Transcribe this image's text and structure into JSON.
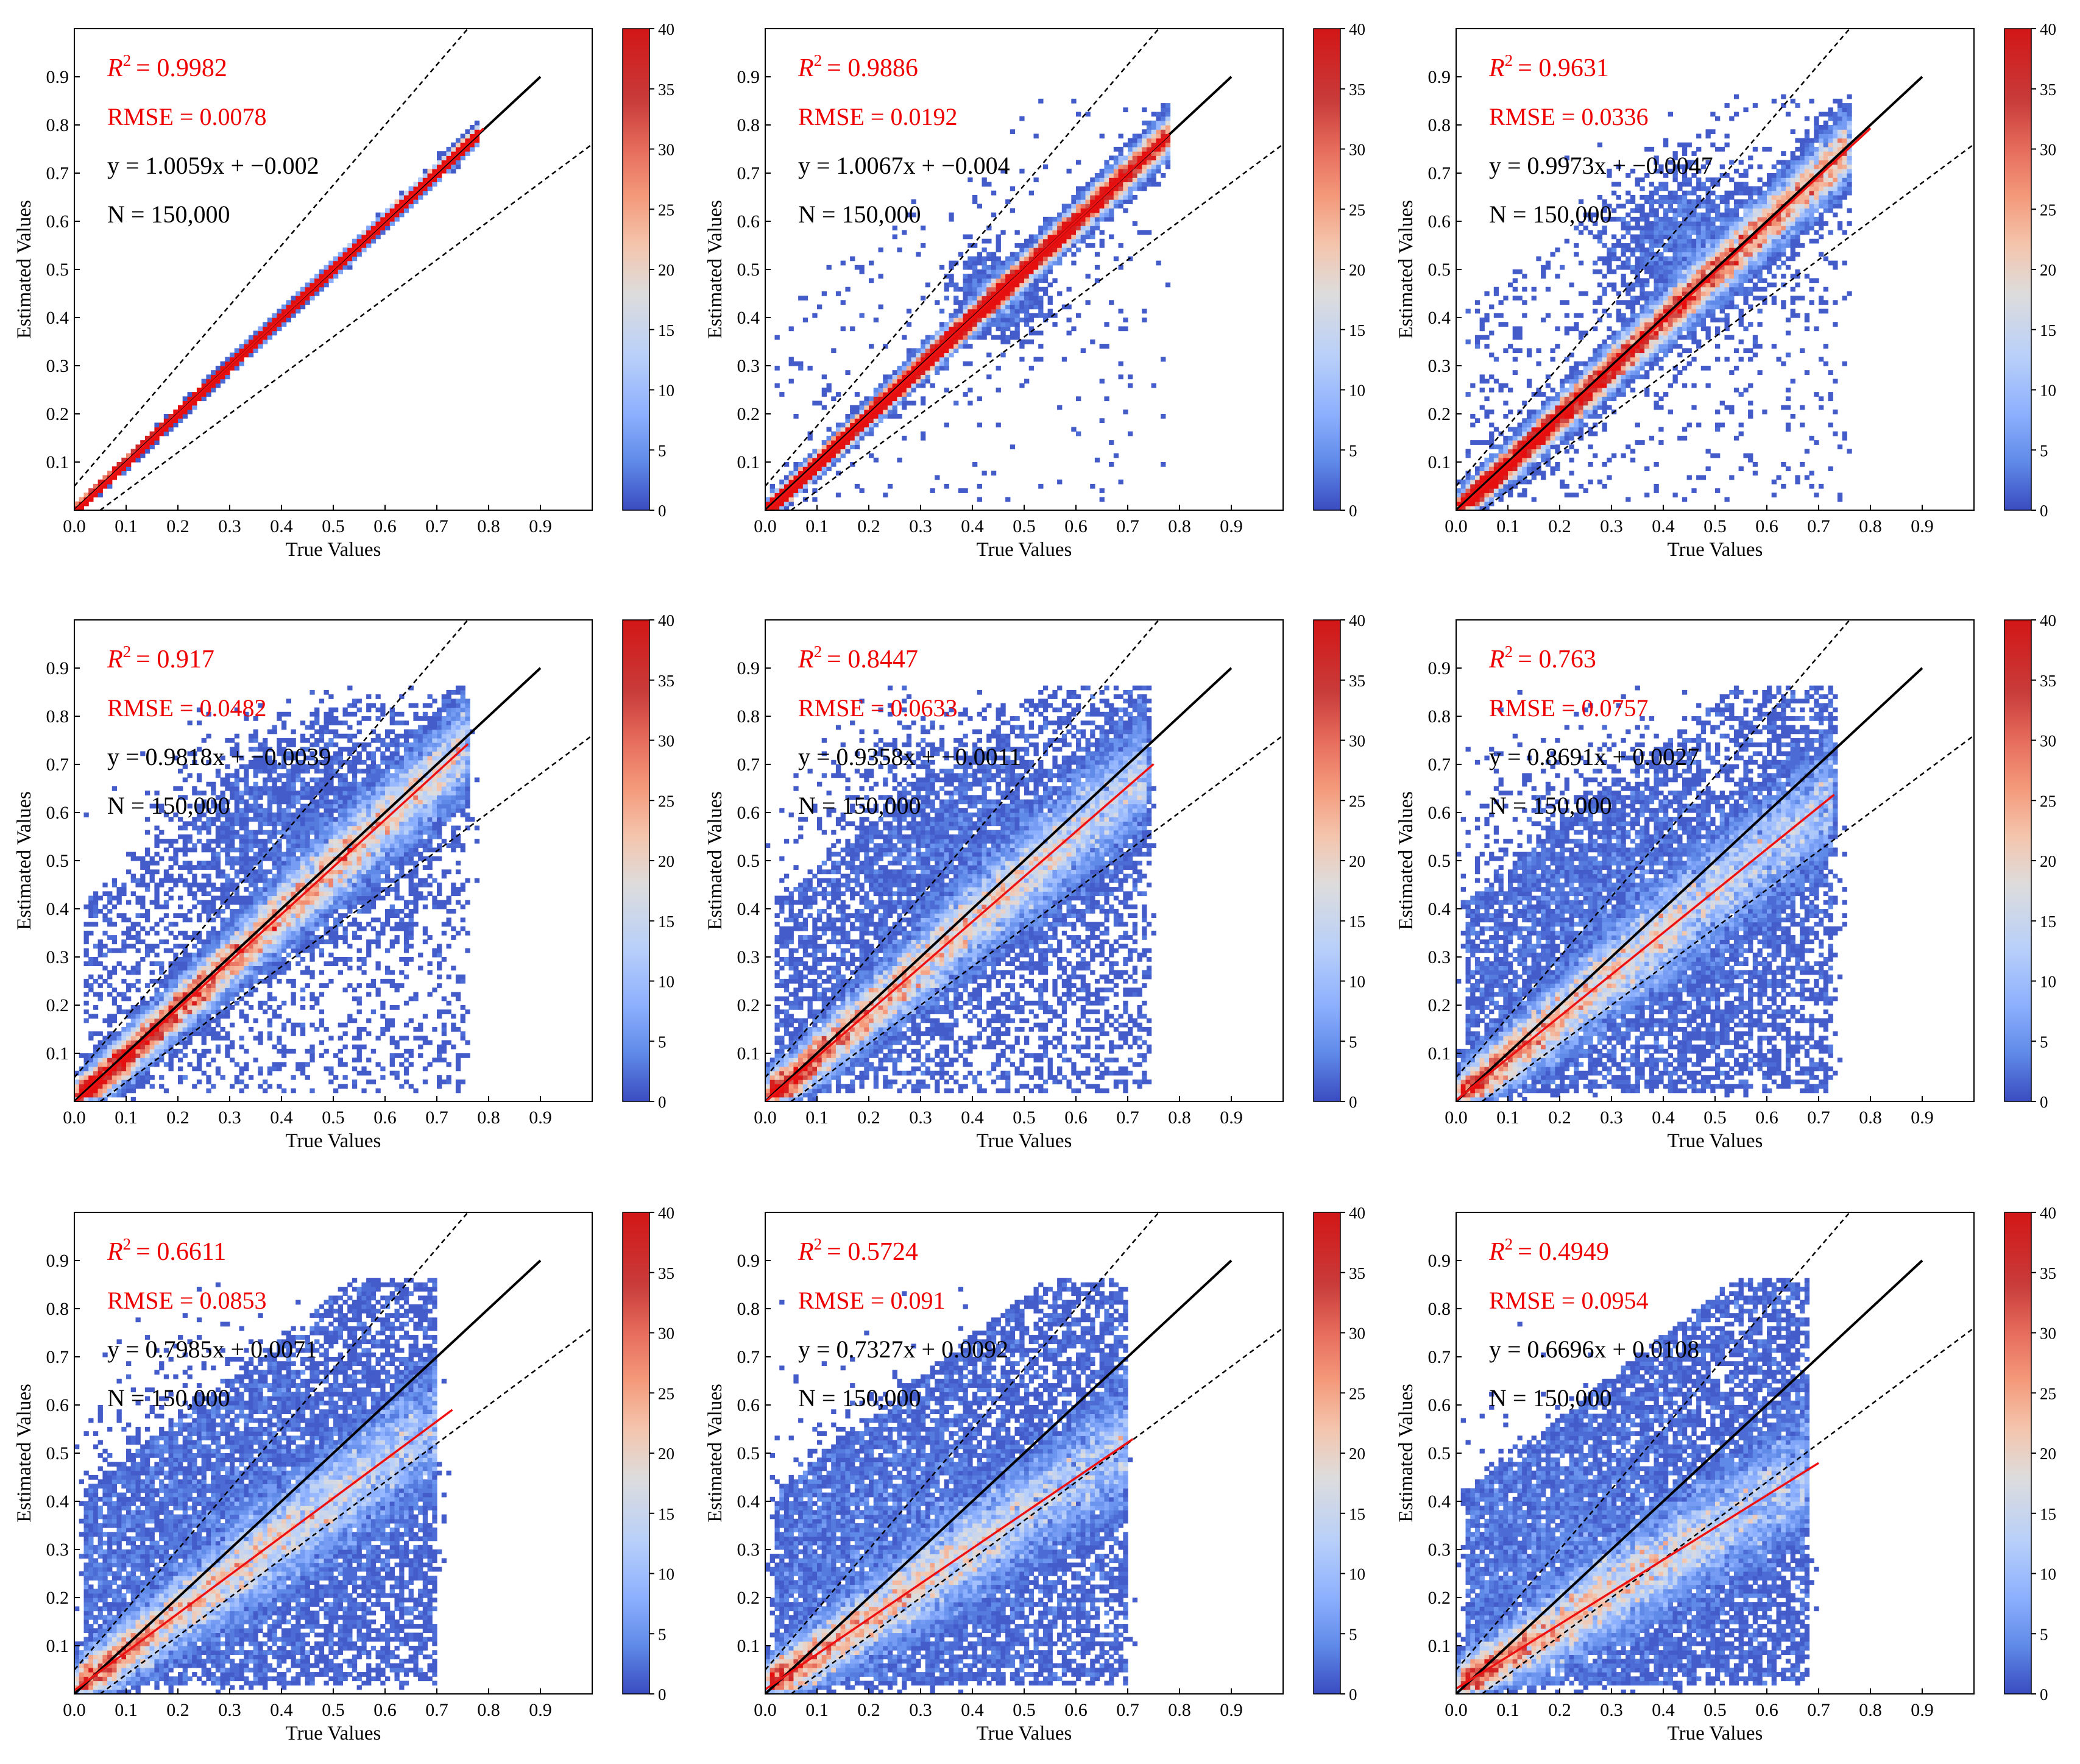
{
  "figure": {
    "panel_count": 9,
    "layout": "3x3 grid",
    "colors": {
      "stat_red": "#ee0000",
      "stat_black": "#000000",
      "one_to_one_line": "#000000",
      "fit_line": "#ee1111",
      "colorbar": [
        "#3a4cc0",
        "#5f8ae8",
        "#8db0fe",
        "#b9d0f9",
        "#dddcdc",
        "#f4c5ad",
        "#f49a7b",
        "#e66c5c",
        "#c83c3a",
        "#d61f1f",
        "#e50f0f"
      ]
    }
  },
  "chart_data": [
    {
      "type": "heatmap-scatter",
      "id": "p1",
      "xlabel": "True Values",
      "ylabel": "Estimated Values",
      "xlim": [
        0,
        1.0
      ],
      "ylim": [
        0,
        1.0
      ],
      "xticks": [
        "0.0",
        "0.1",
        "0.2",
        "0.3",
        "0.4",
        "0.5",
        "0.6",
        "0.7",
        "0.8",
        "0.9"
      ],
      "yticks": [
        "0.1",
        "0.2",
        "0.3",
        "0.4",
        "0.5",
        "0.6",
        "0.7",
        "0.8",
        "0.9"
      ],
      "r2_label": "R",
      "r2_value": "= 0.9982",
      "rmse_text": "RMSE = 0.0078",
      "equation": "y = 1.0059x + −0.002",
      "n_text": "N = 150,000",
      "slope": 1.0059,
      "intercept": -0.002,
      "fit_x_end": 0.79,
      "colorbar_range": [
        0,
        40
      ],
      "colorbar_ticks": [
        "0",
        "5",
        "10",
        "15",
        "20",
        "25",
        "30",
        "35",
        "40"
      ],
      "spread": 0.006,
      "x_max": 0.78,
      "outliers": 0.0,
      "blob_center": [
        0.35,
        0.35
      ],
      "blob_spread": 0.0,
      "reference_lines": {
        "one_to_one": [
          [
            0,
            0
          ],
          [
            0.9,
            0.9
          ]
        ],
        "upper_bound_slope": 1.25,
        "lower_bound_slope": 0.8,
        "offset": 0.05
      }
    },
    {
      "type": "heatmap-scatter",
      "id": "p2",
      "xlabel": "True Values",
      "ylabel": "Estimated Values",
      "xlim": [
        0,
        1.0
      ],
      "ylim": [
        0,
        1.0
      ],
      "xticks": [
        "0.0",
        "0.1",
        "0.2",
        "0.3",
        "0.4",
        "0.5",
        "0.6",
        "0.7",
        "0.8",
        "0.9"
      ],
      "yticks": [
        "0.1",
        "0.2",
        "0.3",
        "0.4",
        "0.5",
        "0.6",
        "0.7",
        "0.8",
        "0.9"
      ],
      "r2_label": "R",
      "r2_value": "= 0.9886",
      "rmse_text": "RMSE = 0.0192",
      "equation": "y = 1.0067x + −0.004",
      "n_text": "N = 150,000",
      "slope": 1.0067,
      "intercept": -0.004,
      "fit_x_end": 0.78,
      "colorbar_range": [
        0,
        40
      ],
      "colorbar_ticks": [
        "0",
        "5",
        "10",
        "15",
        "20",
        "25",
        "30",
        "35",
        "40"
      ],
      "spread": 0.018,
      "x_max": 0.78,
      "outliers": 0.02,
      "blob_center": [
        0.45,
        0.45
      ],
      "blob_spread": 0.05,
      "reference_lines": {
        "one_to_one": [
          [
            0,
            0
          ],
          [
            0.9,
            0.9
          ]
        ],
        "upper_bound_slope": 1.25,
        "lower_bound_slope": 0.8,
        "offset": 0.05
      }
    },
    {
      "type": "heatmap-scatter",
      "id": "p3",
      "xlabel": "True Values",
      "ylabel": "Estimated Values",
      "xlim": [
        0,
        1.0
      ],
      "ylim": [
        0,
        1.0
      ],
      "xticks": [
        "0.0",
        "0.1",
        "0.2",
        "0.3",
        "0.4",
        "0.5",
        "0.6",
        "0.7",
        "0.8",
        "0.9"
      ],
      "yticks": [
        "0.1",
        "0.2",
        "0.3",
        "0.4",
        "0.5",
        "0.6",
        "0.7",
        "0.8",
        "0.9"
      ],
      "r2_label": "R",
      "r2_value": "= 0.9631",
      "rmse_text": "RMSE = 0.0336",
      "equation": "y = 0.9973x + −0.0047",
      "n_text": "N = 150,000",
      "slope": 0.9973,
      "intercept": -0.0047,
      "fit_x_end": 0.8,
      "colorbar_range": [
        0,
        40
      ],
      "colorbar_ticks": [
        "0",
        "5",
        "10",
        "15",
        "20",
        "25",
        "30",
        "35",
        "40"
      ],
      "spread": 0.032,
      "x_max": 0.76,
      "outliers": 0.05,
      "blob_center": [
        0.45,
        0.55
      ],
      "blob_spread": 0.1,
      "reference_lines": {
        "one_to_one": [
          [
            0,
            0
          ],
          [
            0.9,
            0.9
          ]
        ],
        "upper_bound_slope": 1.25,
        "lower_bound_slope": 0.8,
        "offset": 0.05
      }
    },
    {
      "type": "heatmap-scatter",
      "id": "p4",
      "xlabel": "True Values",
      "ylabel": "Estimated Values",
      "xlim": [
        0,
        1.0
      ],
      "ylim": [
        0,
        1.0
      ],
      "xticks": [
        "0.0",
        "0.1",
        "0.2",
        "0.3",
        "0.4",
        "0.5",
        "0.6",
        "0.7",
        "0.8",
        "0.9"
      ],
      "yticks": [
        "0.1",
        "0.2",
        "0.3",
        "0.4",
        "0.5",
        "0.6",
        "0.7",
        "0.8",
        "0.9"
      ],
      "r2_label": "R",
      "r2_value": "= 0.917",
      "rmse_text": "RMSE = 0.0482",
      "equation": "y = 0.9818x + −0.0039",
      "n_text": "N = 150,000",
      "slope": 0.9818,
      "intercept": -0.0039,
      "fit_x_end": 0.76,
      "colorbar_range": [
        0,
        40
      ],
      "colorbar_ticks": [
        "0",
        "5",
        "10",
        "15",
        "20",
        "25",
        "30",
        "35",
        "40"
      ],
      "spread": 0.045,
      "x_max": 0.76,
      "outliers": 0.12,
      "blob_center": [
        0.45,
        0.55
      ],
      "blob_spread": 0.15,
      "reference_lines": {
        "one_to_one": [
          [
            0,
            0
          ],
          [
            0.9,
            0.9
          ]
        ],
        "upper_bound_slope": 1.25,
        "lower_bound_slope": 0.8,
        "offset": 0.05
      }
    },
    {
      "type": "heatmap-scatter",
      "id": "p5",
      "xlabel": "True Values",
      "ylabel": "Estimated Values",
      "xlim": [
        0,
        1.0
      ],
      "ylim": [
        0,
        1.0
      ],
      "xticks": [
        "0.0",
        "0.1",
        "0.2",
        "0.3",
        "0.4",
        "0.5",
        "0.6",
        "0.7",
        "0.8",
        "0.9"
      ],
      "yticks": [
        "0.1",
        "0.2",
        "0.3",
        "0.4",
        "0.5",
        "0.6",
        "0.7",
        "0.8",
        "0.9"
      ],
      "r2_label": "R",
      "r2_value": "= 0.8447",
      "rmse_text": "RMSE = 0.0633",
      "equation": "y = 0.9358x + −0.0011",
      "n_text": "N = 150,000",
      "slope": 0.9358,
      "intercept": -0.0011,
      "fit_x_end": 0.75,
      "colorbar_range": [
        0,
        40
      ],
      "colorbar_ticks": [
        "0",
        "5",
        "10",
        "15",
        "20",
        "25",
        "30",
        "35",
        "40"
      ],
      "spread": 0.055,
      "x_max": 0.74,
      "outliers": 0.25,
      "blob_center": [
        0.4,
        0.5
      ],
      "blob_spread": 0.18,
      "reference_lines": {
        "one_to_one": [
          [
            0,
            0
          ],
          [
            0.9,
            0.9
          ]
        ],
        "upper_bound_slope": 1.25,
        "lower_bound_slope": 0.8,
        "offset": 0.05
      }
    },
    {
      "type": "heatmap-scatter",
      "id": "p6",
      "xlabel": "True Values",
      "ylabel": "Estimated Values",
      "xlim": [
        0,
        1.0
      ],
      "ylim": [
        0,
        1.0
      ],
      "xticks": [
        "0.0",
        "0.1",
        "0.2",
        "0.3",
        "0.4",
        "0.5",
        "0.6",
        "0.7",
        "0.8",
        "0.9"
      ],
      "yticks": [
        "0.1",
        "0.2",
        "0.3",
        "0.4",
        "0.5",
        "0.6",
        "0.7",
        "0.8",
        "0.9"
      ],
      "r2_label": "R",
      "r2_value": "= 0.763",
      "rmse_text": "RMSE = 0.0757",
      "equation": "y = 0.8691x + 0.0027",
      "n_text": "N = 150,000",
      "slope": 0.8691,
      "intercept": 0.0027,
      "fit_x_end": 0.73,
      "colorbar_range": [
        0,
        40
      ],
      "colorbar_ticks": [
        "0",
        "5",
        "10",
        "15",
        "20",
        "25",
        "30",
        "35",
        "40"
      ],
      "spread": 0.06,
      "x_max": 0.73,
      "outliers": 0.35,
      "blob_center": [
        0.35,
        0.4
      ],
      "blob_spread": 0.2,
      "reference_lines": {
        "one_to_one": [
          [
            0,
            0
          ],
          [
            0.9,
            0.9
          ]
        ],
        "upper_bound_slope": 1.25,
        "lower_bound_slope": 0.8,
        "offset": 0.05
      }
    },
    {
      "type": "heatmap-scatter",
      "id": "p7",
      "xlabel": "True Values",
      "ylabel": "Estimated Values",
      "xlim": [
        0,
        1.0
      ],
      "ylim": [
        0,
        1.0
      ],
      "xticks": [
        "0.0",
        "0.1",
        "0.2",
        "0.3",
        "0.4",
        "0.5",
        "0.6",
        "0.7",
        "0.8",
        "0.9"
      ],
      "yticks": [
        "0.1",
        "0.2",
        "0.3",
        "0.4",
        "0.5",
        "0.6",
        "0.7",
        "0.8",
        "0.9"
      ],
      "r2_label": "R",
      "r2_value": "= 0.6611",
      "rmse_text": "RMSE = 0.0853",
      "equation": "y = 0.7985x + 0.0071",
      "n_text": "N = 150,000",
      "slope": 0.7985,
      "intercept": 0.0071,
      "fit_x_end": 0.73,
      "colorbar_range": [
        0,
        40
      ],
      "colorbar_ticks": [
        "0",
        "5",
        "10",
        "15",
        "20",
        "25",
        "30",
        "35",
        "40"
      ],
      "spread": 0.06,
      "x_max": 0.7,
      "outliers": 0.45,
      "blob_center": [
        0.35,
        0.35
      ],
      "blob_spread": 0.2,
      "reference_lines": {
        "one_to_one": [
          [
            0,
            0
          ],
          [
            0.9,
            0.9
          ]
        ],
        "upper_bound_slope": 1.25,
        "lower_bound_slope": 0.8,
        "offset": 0.05
      }
    },
    {
      "type": "heatmap-scatter",
      "id": "p8",
      "xlabel": "True Values",
      "ylabel": "Estimated Values",
      "xlim": [
        0,
        1.0
      ],
      "ylim": [
        0,
        1.0
      ],
      "xticks": [
        "0.0",
        "0.1",
        "0.2",
        "0.3",
        "0.4",
        "0.5",
        "0.6",
        "0.7",
        "0.8",
        "0.9"
      ],
      "yticks": [
        "0.1",
        "0.2",
        "0.3",
        "0.4",
        "0.5",
        "0.6",
        "0.7",
        "0.8",
        "0.9"
      ],
      "r2_label": "R",
      "r2_value": "= 0.5724",
      "rmse_text": "RMSE = 0.091",
      "equation": "y = 0.7327x + 0.0092",
      "n_text": "N = 150,000",
      "slope": 0.7327,
      "intercept": 0.0092,
      "fit_x_end": 0.71,
      "colorbar_range": [
        0,
        40
      ],
      "colorbar_ticks": [
        "0",
        "5",
        "10",
        "15",
        "20",
        "25",
        "30",
        "35",
        "40"
      ],
      "spread": 0.06,
      "x_max": 0.7,
      "outliers": 0.5,
      "blob_center": [
        0.3,
        0.3
      ],
      "blob_spread": 0.18,
      "reference_lines": {
        "one_to_one": [
          [
            0,
            0
          ],
          [
            0.9,
            0.9
          ]
        ],
        "upper_bound_slope": 1.25,
        "lower_bound_slope": 0.8,
        "offset": 0.05
      }
    },
    {
      "type": "heatmap-scatter",
      "id": "p9",
      "xlabel": "True Values",
      "ylabel": "Estimated Values",
      "xlim": [
        0,
        1.0
      ],
      "ylim": [
        0,
        1.0
      ],
      "xticks": [
        "0.0",
        "0.1",
        "0.2",
        "0.3",
        "0.4",
        "0.5",
        "0.6",
        "0.7",
        "0.8",
        "0.9"
      ],
      "yticks": [
        "0.1",
        "0.2",
        "0.3",
        "0.4",
        "0.5",
        "0.6",
        "0.7",
        "0.8",
        "0.9"
      ],
      "r2_label": "R",
      "r2_value": "= 0.4949",
      "rmse_text": "RMSE = 0.0954",
      "equation": "y = 0.6696x + 0.0108",
      "n_text": "N = 150,000",
      "slope": 0.6696,
      "intercept": 0.0108,
      "fit_x_end": 0.7,
      "colorbar_range": [
        0,
        40
      ],
      "colorbar_ticks": [
        "0",
        "5",
        "10",
        "15",
        "20",
        "25",
        "30",
        "35",
        "40"
      ],
      "spread": 0.06,
      "x_max": 0.68,
      "outliers": 0.55,
      "blob_center": [
        0.3,
        0.28
      ],
      "blob_spread": 0.17,
      "reference_lines": {
        "one_to_one": [
          [
            0,
            0
          ],
          [
            0.9,
            0.9
          ]
        ],
        "upper_bound_slope": 1.25,
        "lower_bound_slope": 0.8,
        "offset": 0.05
      }
    }
  ]
}
